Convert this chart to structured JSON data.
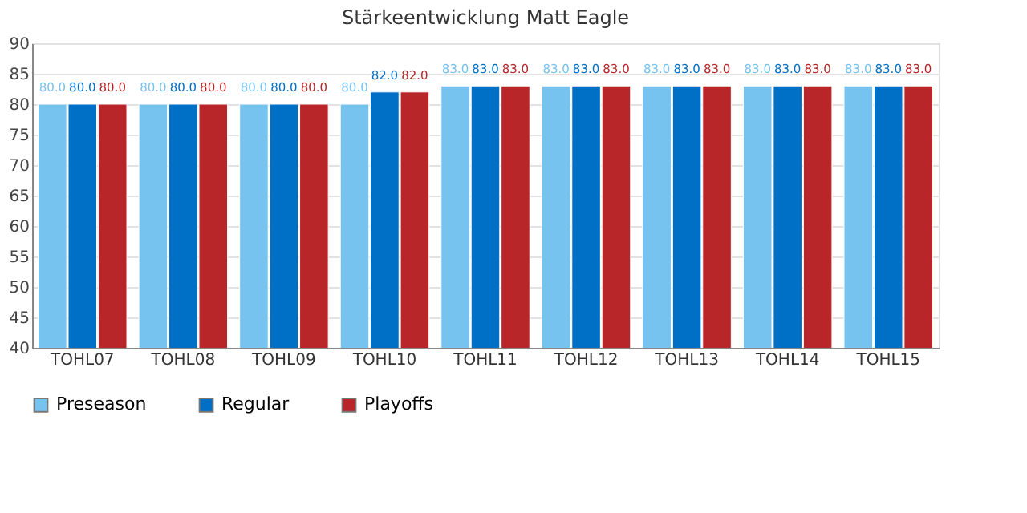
{
  "chart_data": {
    "type": "bar",
    "title": "Stärkeentwicklung Matt Eagle",
    "categories": [
      "TOHL07",
      "TOHL08",
      "TOHL09",
      "TOHL10",
      "TOHL11",
      "TOHL12",
      "TOHL13",
      "TOHL14",
      "TOHL15"
    ],
    "series": [
      {
        "name": "Preseason",
        "color": "#77c3ef",
        "values": [
          80,
          80,
          80,
          80,
          83,
          83,
          83,
          83,
          83
        ],
        "value_labels": [
          "80.0",
          "80.0",
          "80.0",
          "80.0",
          "83.0",
          "83.0",
          "83.0",
          "83.0",
          "83.0"
        ]
      },
      {
        "name": "Regular",
        "color": "#006fc6",
        "values": [
          80,
          80,
          80,
          82,
          83,
          83,
          83,
          83,
          83
        ],
        "value_labels": [
          "80.0",
          "80.0",
          "80.0",
          "82.0",
          "83.0",
          "83.0",
          "83.0",
          "83.0",
          "83.0"
        ]
      },
      {
        "name": "Playoffs",
        "color": "#b8262a",
        "values": [
          80,
          80,
          80,
          82,
          83,
          83,
          83,
          83,
          83
        ],
        "value_labels": [
          "80.0",
          "80.0",
          "80.0",
          "82.0",
          "83.0",
          "83.0",
          "83.0",
          "83.0",
          "83.0"
        ]
      }
    ],
    "ylim": [
      40,
      90
    ],
    "yticks": [
      40,
      45,
      50,
      55,
      60,
      65,
      70,
      75,
      80,
      85,
      90
    ],
    "grid": "y",
    "legend": "bottom"
  }
}
